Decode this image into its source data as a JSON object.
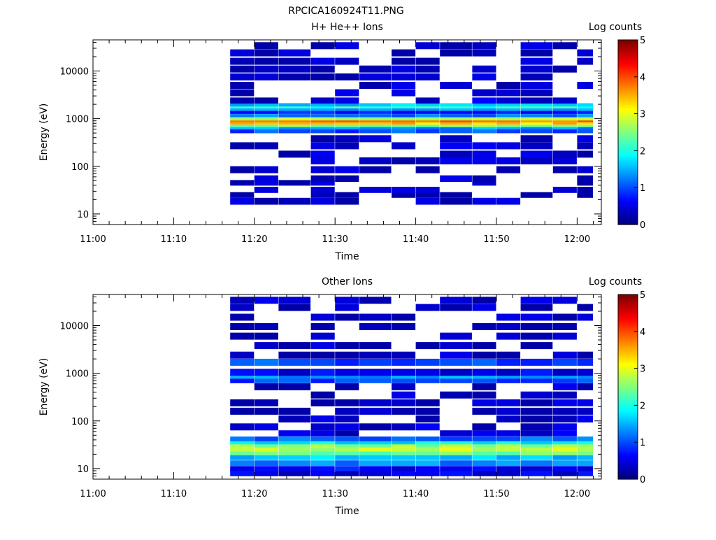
{
  "figure": {
    "title": "RPCICA160924T11.PNG"
  },
  "colors": {
    "colormap": "jet",
    "axis": "#000000",
    "background": "#ffffff"
  },
  "chart_data": [
    {
      "type": "heatmap",
      "title": "H+ He++ Ions",
      "xlabel": "Time",
      "ylabel": "Energy (eV)",
      "y_scale": "log",
      "ylim": [
        6,
        45000
      ],
      "xlim": [
        "11:00",
        "12:03"
      ],
      "x_ticks": [
        "11:00",
        "11:10",
        "11:20",
        "11:30",
        "11:40",
        "11:50",
        "12:00"
      ],
      "y_ticks": [
        "10",
        "100",
        "1000",
        "10000"
      ],
      "colorbar": {
        "label": "Log counts",
        "min": 0,
        "max": 5,
        "ticks": [
          "0",
          "1",
          "2",
          "3",
          "4",
          "5"
        ]
      },
      "time_bins": [
        "11:17-11:20",
        "11:20-11:23",
        "11:23-11:27",
        "11:27-11:30",
        "11:30-11:33",
        "11:33-11:37",
        "11:37-11:40",
        "11:40-11:43",
        "11:43-11:47",
        "11:47-11:50",
        "11:50-11:53",
        "11:53-11:57",
        "11:57-12:00",
        "12:00-12:02"
      ],
      "profile": [
        {
          "energy": 18.5,
          "value": 0.3
        },
        {
          "energy": 25,
          "value": 0.3
        },
        {
          "energy": 32,
          "value": 0.35
        },
        {
          "energy": 45,
          "value": 0.3
        },
        {
          "energy": 55,
          "value": 0.3
        },
        {
          "energy": 85,
          "value": 0.35
        },
        {
          "energy": 130,
          "value": 0.3
        },
        {
          "energy": 180,
          "value": 0.35
        },
        {
          "energy": 270,
          "value": 0.35
        },
        {
          "energy": 380,
          "value": 0.4
        },
        {
          "energy": 560,
          "value": 1.0
        },
        {
          "energy": 630,
          "value": 1.4
        },
        {
          "energy": 700,
          "value": 2.4
        },
        {
          "energy": 790,
          "value": 3.4
        },
        {
          "energy": 880,
          "value": 3.8
        },
        {
          "energy": 980,
          "value": 2.8
        },
        {
          "energy": 1150,
          "value": 1.2
        },
        {
          "energy": 1350,
          "value": 0.7
        },
        {
          "energy": 1550,
          "value": 1.4
        },
        {
          "energy": 1750,
          "value": 2.1
        },
        {
          "energy": 1950,
          "value": 1.6
        },
        {
          "energy": 2400,
          "value": 0.4
        },
        {
          "energy": 3500,
          "value": 0.3
        },
        {
          "energy": 5000,
          "value": 0.3
        },
        {
          "energy": 7500,
          "value": 0.35
        },
        {
          "energy": 11000,
          "value": 0.3
        },
        {
          "energy": 16000,
          "value": 0.3
        },
        {
          "energy": 24000,
          "value": 0.3
        },
        {
          "energy": 34000,
          "value": 0.3
        }
      ]
    },
    {
      "type": "heatmap",
      "title": "Other Ions",
      "xlabel": "Time",
      "ylabel": "Energy (eV)",
      "y_scale": "log",
      "ylim": [
        6,
        45000
      ],
      "xlim": [
        "11:00",
        "12:03"
      ],
      "x_ticks": [
        "11:00",
        "11:10",
        "11:20",
        "11:30",
        "11:40",
        "11:50",
        "12:00"
      ],
      "y_ticks": [
        "10",
        "100",
        "1000",
        "10000"
      ],
      "colorbar": {
        "label": "Log counts",
        "min": 0,
        "max": 5,
        "ticks": [
          "0",
          "1",
          "2",
          "3",
          "4",
          "5"
        ]
      },
      "time_bins": [
        "11:17-11:20",
        "11:20-11:23",
        "11:23-11:27",
        "11:27-11:30",
        "11:30-11:33",
        "11:33-11:37",
        "11:37-11:40",
        "11:40-11:43",
        "11:43-11:47",
        "11:47-11:50",
        "11:50-11:53",
        "11:53-11:57",
        "11:57-12:00",
        "12:00-12:02"
      ],
      "profile": [
        {
          "energy": 8,
          "value": 0.5
        },
        {
          "energy": 10,
          "value": 0.6
        },
        {
          "energy": 13,
          "value": 1.3
        },
        {
          "energy": 17,
          "value": 1.6
        },
        {
          "energy": 21,
          "value": 2.4
        },
        {
          "energy": 25,
          "value": 2.8
        },
        {
          "energy": 30,
          "value": 2.6
        },
        {
          "energy": 35,
          "value": 1.8
        },
        {
          "energy": 42,
          "value": 1.1
        },
        {
          "energy": 55,
          "value": 0.4
        },
        {
          "energy": 75,
          "value": 0.35
        },
        {
          "energy": 110,
          "value": 0.35
        },
        {
          "energy": 160,
          "value": 0.3
        },
        {
          "energy": 240,
          "value": 0.3
        },
        {
          "energy": 350,
          "value": 0.3
        },
        {
          "energy": 520,
          "value": 0.3
        },
        {
          "energy": 700,
          "value": 0.9
        },
        {
          "energy": 850,
          "value": 1.4
        },
        {
          "energy": 1050,
          "value": 0.5
        },
        {
          "energy": 1700,
          "value": 1.0
        },
        {
          "energy": 2400,
          "value": 0.3
        },
        {
          "energy": 3800,
          "value": 0.3
        },
        {
          "energy": 6000,
          "value": 0.3
        },
        {
          "energy": 9500,
          "value": 0.3
        },
        {
          "energy": 15000,
          "value": 0.3
        },
        {
          "energy": 24000,
          "value": 0.3
        },
        {
          "energy": 34000,
          "value": 0.3
        }
      ]
    }
  ]
}
